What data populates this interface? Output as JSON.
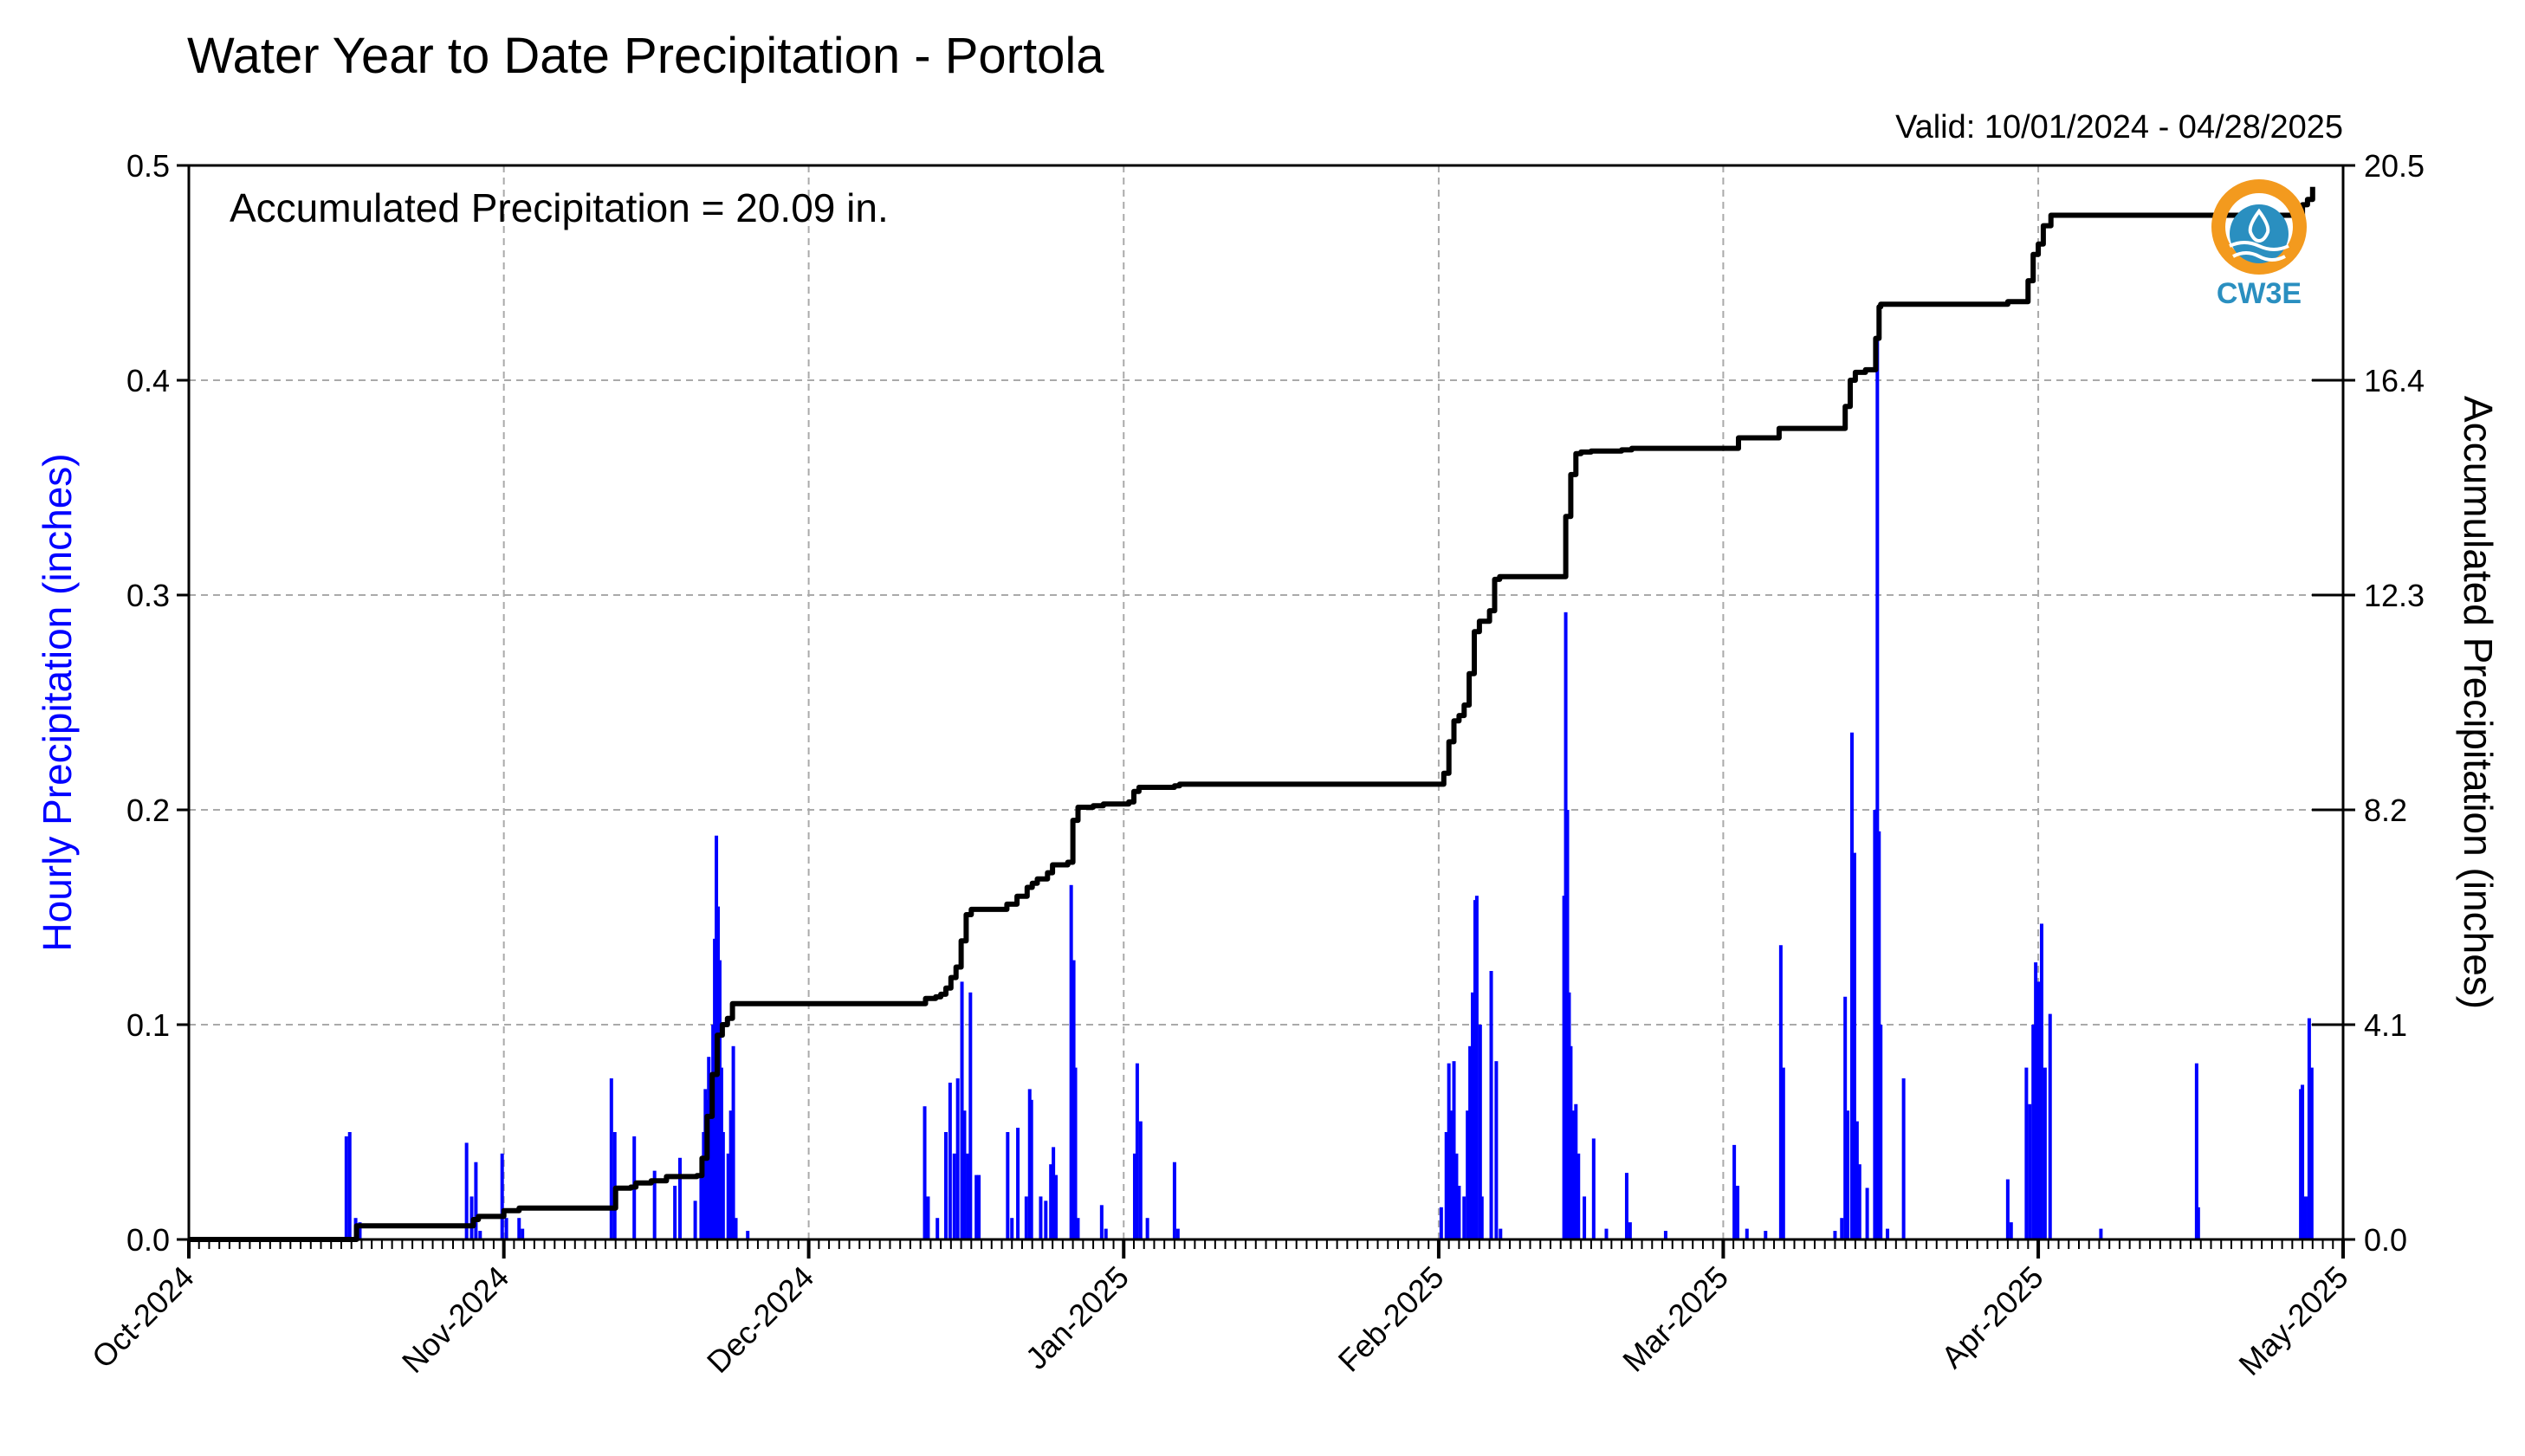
{
  "title": "Water Year to Date Precipitation - Portola",
  "valid_text": "Valid: 10/01/2024 - 04/28/2025",
  "annotation": "Accumulated Precipitation = 20.09 in.",
  "logo_text": "CW3E",
  "colors": {
    "bars": "#0000ff",
    "line": "#000000",
    "grid": "#aaaaaa",
    "left_label": "#0000ff",
    "logo_orange": "#f39a1e",
    "logo_blue": "#2a8fc0"
  },
  "chart_data": {
    "type": "bar",
    "title": "Water Year to Date Precipitation - Portola",
    "subtitle": "Valid: 10/01/2024 - 04/28/2025",
    "ylabel": "Hourly Precipitation (inches)",
    "y2label": "Accumulated Precipitation (inches)",
    "ylim": [
      0,
      0.5
    ],
    "y2lim": [
      0,
      20.5
    ],
    "xlim": [
      "2024-10-01",
      "2025-05-01"
    ],
    "yticks": [
      "0.0",
      "0.1",
      "0.2",
      "0.3",
      "0.4",
      "0.5"
    ],
    "y2ticks": [
      "0.0",
      "4.1",
      "8.2",
      "12.3",
      "16.4",
      "20.5"
    ],
    "xticks": [
      {
        "date": "2024-10-01",
        "label": "Oct-2024"
      },
      {
        "date": "2024-11-01",
        "label": "Nov-2024"
      },
      {
        "date": "2024-12-01",
        "label": "Dec-2024"
      },
      {
        "date": "2025-01-01",
        "label": "Jan-2025"
      },
      {
        "date": "2025-02-01",
        "label": "Feb-2025"
      },
      {
        "date": "2025-03-01",
        "label": "Mar-2025"
      },
      {
        "date": "2025-04-01",
        "label": "Apr-2025"
      },
      {
        "date": "2025-05-01",
        "label": "May-2025"
      }
    ],
    "grid": true,
    "series": [
      {
        "name": "Hourly Precipitation",
        "type": "bar",
        "axis": "left",
        "points": [
          [
            "2024-10-16T12",
            0.048
          ],
          [
            "2024-10-16T20",
            0.05
          ],
          [
            "2024-10-17T10",
            0.01
          ],
          [
            "2024-10-17T20",
            0.008
          ],
          [
            "2024-10-28T08",
            0.045
          ],
          [
            "2024-10-28T20",
            0.02
          ],
          [
            "2024-10-29T06",
            0.036
          ],
          [
            "2024-10-29T16",
            0.004
          ],
          [
            "2024-10-31T20",
            0.04
          ],
          [
            "2024-11-01T06",
            0.01
          ],
          [
            "2024-11-02T12",
            0.01
          ],
          [
            "2024-11-02T20",
            0.005
          ],
          [
            "2024-11-11T14",
            0.075
          ],
          [
            "2024-11-11T22",
            0.05
          ],
          [
            "2024-11-13T20",
            0.048
          ],
          [
            "2024-11-15T20",
            0.032
          ],
          [
            "2024-11-17T20",
            0.025
          ],
          [
            "2024-11-18T08",
            0.038
          ],
          [
            "2024-11-19T20",
            0.018
          ],
          [
            "2024-11-20T10",
            0.03
          ],
          [
            "2024-11-20T16",
            0.05
          ],
          [
            "2024-11-20T20",
            0.07
          ],
          [
            "2024-11-21T00",
            0.065
          ],
          [
            "2024-11-21T04",
            0.085
          ],
          [
            "2024-11-21T08",
            0.06
          ],
          [
            "2024-11-21T14",
            0.1
          ],
          [
            "2024-11-21T18",
            0.14
          ],
          [
            "2024-11-21T22",
            0.188
          ],
          [
            "2024-11-22T02",
            0.155
          ],
          [
            "2024-11-22T06",
            0.13
          ],
          [
            "2024-11-22T10",
            0.08
          ],
          [
            "2024-11-22T14",
            0.05
          ],
          [
            "2024-11-23T02",
            0.04
          ],
          [
            "2024-11-23T08",
            0.06
          ],
          [
            "2024-11-23T14",
            0.09
          ],
          [
            "2024-11-23T20",
            0.01
          ],
          [
            "2024-11-25T00",
            0.004
          ],
          [
            "2024-12-12T10",
            0.062
          ],
          [
            "2024-12-12T18",
            0.02
          ],
          [
            "2024-12-13T16",
            0.01
          ],
          [
            "2024-12-14T12",
            0.05
          ],
          [
            "2024-12-14T22",
            0.073
          ],
          [
            "2024-12-15T08",
            0.04
          ],
          [
            "2024-12-15T16",
            0.075
          ],
          [
            "2024-12-16T02",
            0.12
          ],
          [
            "2024-12-16T08",
            0.06
          ],
          [
            "2024-12-16T16",
            0.04
          ],
          [
            "2024-12-16T22",
            0.115
          ],
          [
            "2024-12-17T12",
            0.03
          ],
          [
            "2024-12-17T18",
            0.03
          ],
          [
            "2024-12-20T14",
            0.05
          ],
          [
            "2024-12-21T00",
            0.01
          ],
          [
            "2024-12-21T14",
            0.052
          ],
          [
            "2024-12-22T10",
            0.02
          ],
          [
            "2024-12-22T18",
            0.07
          ],
          [
            "2024-12-22T22",
            0.065
          ],
          [
            "2024-12-23T20",
            0.02
          ],
          [
            "2024-12-24T08",
            0.018
          ],
          [
            "2024-12-24T20",
            0.035
          ],
          [
            "2024-12-25T02",
            0.043
          ],
          [
            "2024-12-25T08",
            0.03
          ],
          [
            "2024-12-26T20",
            0.165
          ],
          [
            "2024-12-27T02",
            0.13
          ],
          [
            "2024-12-27T06",
            0.08
          ],
          [
            "2024-12-27T12",
            0.01
          ],
          [
            "2024-12-29T20",
            0.016
          ],
          [
            "2024-12-30T06",
            0.005
          ],
          [
            "2025-01-02T02",
            0.04
          ],
          [
            "2025-01-02T08",
            0.082
          ],
          [
            "2025-01-02T16",
            0.055
          ],
          [
            "2025-01-03T08",
            0.01
          ],
          [
            "2025-01-06T00",
            0.036
          ],
          [
            "2025-01-06T08",
            0.005
          ],
          [
            "2025-02-01T06",
            0.015
          ],
          [
            "2025-02-01T18",
            0.05
          ],
          [
            "2025-02-02T00",
            0.082
          ],
          [
            "2025-02-02T06",
            0.06
          ],
          [
            "2025-02-02T12",
            0.083
          ],
          [
            "2025-02-02T18",
            0.04
          ],
          [
            "2025-02-03T00",
            0.025
          ],
          [
            "2025-02-03T12",
            0.02
          ],
          [
            "2025-02-03T20",
            0.06
          ],
          [
            "2025-02-04T02",
            0.09
          ],
          [
            "2025-02-04T08",
            0.115
          ],
          [
            "2025-02-04T14",
            0.158
          ],
          [
            "2025-02-04T18",
            0.16
          ],
          [
            "2025-02-05T02",
            0.1
          ],
          [
            "2025-02-05T06",
            0.02
          ],
          [
            "2025-02-06T04",
            0.125
          ],
          [
            "2025-02-06T16",
            0.083
          ],
          [
            "2025-02-07T02",
            0.005
          ],
          [
            "2025-02-13T08",
            0.16
          ],
          [
            "2025-02-13T12",
            0.292
          ],
          [
            "2025-02-13T16",
            0.2
          ],
          [
            "2025-02-13T20",
            0.115
          ],
          [
            "2025-02-14T00",
            0.09
          ],
          [
            "2025-02-14T06",
            0.06
          ],
          [
            "2025-02-14T12",
            0.063
          ],
          [
            "2025-02-14T18",
            0.04
          ],
          [
            "2025-02-15T08",
            0.02
          ],
          [
            "2025-02-16T06",
            0.047
          ],
          [
            "2025-02-17T12",
            0.005
          ],
          [
            "2025-02-19T12",
            0.031
          ],
          [
            "2025-02-19T20",
            0.008
          ],
          [
            "2025-02-23T08",
            0.004
          ],
          [
            "2025-03-02T02",
            0.044
          ],
          [
            "2025-03-02T10",
            0.025
          ],
          [
            "2025-03-03T08",
            0.005
          ],
          [
            "2025-03-05T04",
            0.004
          ],
          [
            "2025-03-06T16",
            0.137
          ],
          [
            "2025-03-06T22",
            0.08
          ],
          [
            "2025-03-12T00",
            0.004
          ],
          [
            "2025-03-12T16",
            0.01
          ],
          [
            "2025-03-13T00",
            0.113
          ],
          [
            "2025-03-13T06",
            0.06
          ],
          [
            "2025-03-13T16",
            0.236
          ],
          [
            "2025-03-13T22",
            0.18
          ],
          [
            "2025-03-14T04",
            0.055
          ],
          [
            "2025-03-14T10",
            0.035
          ],
          [
            "2025-03-15T04",
            0.024
          ],
          [
            "2025-03-15T22",
            0.2
          ],
          [
            "2025-03-16T04",
            0.42
          ],
          [
            "2025-03-16T08",
            0.19
          ],
          [
            "2025-03-16T12",
            0.1
          ],
          [
            "2025-03-17T04",
            0.005
          ],
          [
            "2025-03-18T18",
            0.075
          ],
          [
            "2025-03-29T00",
            0.028
          ],
          [
            "2025-03-29T08",
            0.008
          ],
          [
            "2025-03-30T20",
            0.08
          ],
          [
            "2025-03-31T04",
            0.063
          ],
          [
            "2025-03-31T12",
            0.1
          ],
          [
            "2025-03-31T18",
            0.129
          ],
          [
            "2025-04-01T00",
            0.12
          ],
          [
            "2025-04-01T08",
            0.147
          ],
          [
            "2025-04-01T16",
            0.08
          ],
          [
            "2025-04-02T04",
            0.105
          ],
          [
            "2025-04-07T04",
            0.005
          ],
          [
            "2025-04-16T14",
            0.082
          ],
          [
            "2025-04-16T18",
            0.015
          ],
          [
            "2025-04-26T20",
            0.07
          ],
          [
            "2025-04-27T00",
            0.072
          ],
          [
            "2025-04-27T08",
            0.02
          ],
          [
            "2025-04-27T16",
            0.103
          ],
          [
            "2025-04-27T22",
            0.08
          ]
        ]
      },
      {
        "name": "Accumulated Precipitation",
        "type": "step",
        "axis": "right",
        "points": [
          [
            "2024-10-01T00",
            0.0
          ],
          [
            "2024-10-16T10",
            0.0
          ],
          [
            "2024-10-17T12",
            0.26
          ],
          [
            "2024-10-28T00",
            0.26
          ],
          [
            "2024-10-29T00",
            0.38
          ],
          [
            "2024-10-29T12",
            0.44
          ],
          [
            "2024-10-31T00",
            0.44
          ],
          [
            "2024-11-01T00",
            0.55
          ],
          [
            "2024-11-02T12",
            0.6
          ],
          [
            "2024-11-11T12",
            0.6
          ],
          [
            "2024-11-12T00",
            0.98
          ],
          [
            "2024-11-13T12",
            1.0
          ],
          [
            "2024-11-14T00",
            1.08
          ],
          [
            "2024-11-15T12",
            1.12
          ],
          [
            "2024-11-17T00",
            1.2
          ],
          [
            "2024-11-20T00",
            1.22
          ],
          [
            "2024-11-20T12",
            1.55
          ],
          [
            "2024-11-21T00",
            2.35
          ],
          [
            "2024-11-21T12",
            3.15
          ],
          [
            "2024-11-22T00",
            3.9
          ],
          [
            "2024-11-22T12",
            4.1
          ],
          [
            "2024-11-23T00",
            4.22
          ],
          [
            "2024-11-23T12",
            4.5
          ],
          [
            "2024-12-12T00",
            4.5
          ],
          [
            "2024-12-12T12",
            4.6
          ],
          [
            "2024-12-13T12",
            4.63
          ],
          [
            "2024-12-14T00",
            4.68
          ],
          [
            "2024-12-14T12",
            4.8
          ],
          [
            "2024-12-15T00",
            5.0
          ],
          [
            "2024-12-15T12",
            5.2
          ],
          [
            "2024-12-16T00",
            5.7
          ],
          [
            "2024-12-16T12",
            6.2
          ],
          [
            "2024-12-17T00",
            6.3
          ],
          [
            "2024-12-17T12",
            6.3
          ],
          [
            "2024-12-20T12",
            6.4
          ],
          [
            "2024-12-21T12",
            6.55
          ],
          [
            "2024-12-22T12",
            6.72
          ],
          [
            "2024-12-23T00",
            6.8
          ],
          [
            "2024-12-23T12",
            6.88
          ],
          [
            "2024-12-24T12",
            7.0
          ],
          [
            "2024-12-25T00",
            7.15
          ],
          [
            "2024-12-26T12",
            7.2
          ],
          [
            "2024-12-27T00",
            8.0
          ],
          [
            "2024-12-27T12",
            8.25
          ],
          [
            "2024-12-29T00",
            8.28
          ],
          [
            "2024-12-30T00",
            8.31
          ],
          [
            "2025-01-01T12",
            8.35
          ],
          [
            "2025-01-02T00",
            8.55
          ],
          [
            "2025-01-02T12",
            8.63
          ],
          [
            "2025-01-06T00",
            8.66
          ],
          [
            "2025-01-06T12",
            8.69
          ],
          [
            "2025-02-01T00",
            8.69
          ],
          [
            "2025-02-01T12",
            8.9
          ],
          [
            "2025-02-02T00",
            9.5
          ],
          [
            "2025-02-02T12",
            9.9
          ],
          [
            "2025-02-03T00",
            10.0
          ],
          [
            "2025-02-03T12",
            10.2
          ],
          [
            "2025-02-04T00",
            10.8
          ],
          [
            "2025-02-04T12",
            11.6
          ],
          [
            "2025-02-05T00",
            11.8
          ],
          [
            "2025-02-06T00",
            12.0
          ],
          [
            "2025-02-06T12",
            12.6
          ],
          [
            "2025-02-07T00",
            12.65
          ],
          [
            "2025-02-13T00",
            12.65
          ],
          [
            "2025-02-13T12",
            13.8
          ],
          [
            "2025-02-14T00",
            14.6
          ],
          [
            "2025-02-14T12",
            15.0
          ],
          [
            "2025-02-15T00",
            15.03
          ],
          [
            "2025-02-16T00",
            15.05
          ],
          [
            "2025-02-19T00",
            15.07
          ],
          [
            "2025-02-20T00",
            15.1
          ],
          [
            "2025-03-01T12",
            15.1
          ],
          [
            "2025-03-02T12",
            15.3
          ],
          [
            "2025-03-06T00",
            15.3
          ],
          [
            "2025-03-06T12",
            15.48
          ],
          [
            "2025-03-12T12",
            15.48
          ],
          [
            "2025-03-13T00",
            15.9
          ],
          [
            "2025-03-13T12",
            16.4
          ],
          [
            "2025-03-14T00",
            16.55
          ],
          [
            "2025-03-15T00",
            16.6
          ],
          [
            "2025-03-15T20",
            16.6
          ],
          [
            "2025-03-16T00",
            17.2
          ],
          [
            "2025-03-16T08",
            17.8
          ],
          [
            "2025-03-16T12",
            17.85
          ],
          [
            "2025-03-29T00",
            17.9
          ],
          [
            "2025-03-30T12",
            17.9
          ],
          [
            "2025-03-31T00",
            18.3
          ],
          [
            "2025-03-31T12",
            18.8
          ],
          [
            "2025-04-01T00",
            19.0
          ],
          [
            "2025-04-01T12",
            19.35
          ],
          [
            "2025-04-02T06",
            19.55
          ],
          [
            "2025-04-26T12",
            19.55
          ],
          [
            "2025-04-27T00",
            19.75
          ],
          [
            "2025-04-27T12",
            19.85
          ],
          [
            "2025-04-28T00",
            20.09
          ]
        ]
      }
    ]
  }
}
